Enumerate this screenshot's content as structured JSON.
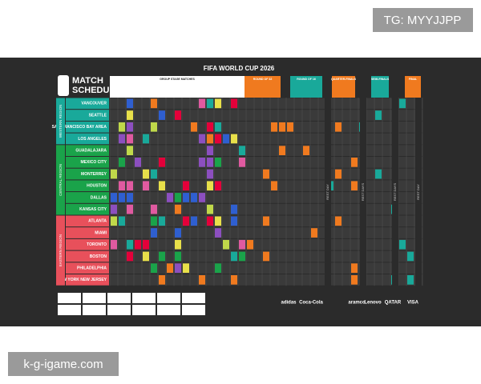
{
  "watermark_top": "TG: MYYJJPP",
  "watermark_bottom": "k-g-igame.com",
  "poster": {
    "title": "FIFA WORLD CUP 2026",
    "heading": [
      "MATCH",
      "SCHEDULE"
    ],
    "stages": [
      "GROUP STAGE MATCHES",
      "ROUND OF 32",
      "ROUND OF 16",
      "QUARTER-FINALS",
      "SEMI-FINALS",
      "FINAL"
    ],
    "regions": [
      {
        "name": "WESTERN REGION",
        "cities": [
          "VANCOUVER",
          "SEATTLE",
          "SAN FRANCISCO BAY AREA",
          "LOS ANGELES"
        ]
      },
      {
        "name": "CENTRAL REGION",
        "cities": [
          "GUADALAJARA",
          "MEXICO CITY",
          "MONTERREY",
          "HOUSTON",
          "DALLAS",
          "KANSAS CITY"
        ]
      },
      {
        "name": "EASTERN REGION",
        "cities": [
          "ATLANTA",
          "MIAMI",
          "TORONTO",
          "BOSTON",
          "PHILADELPHIA",
          "NEW YORK NEW JERSEY"
        ]
      }
    ],
    "rest_days": [
      "REST DAY",
      "REST DAYS",
      "REST DAYS",
      "REST DAY"
    ],
    "sponsors": [
      "adidas",
      "Coca-Cola",
      "aramco",
      "Lenovo",
      "QATAR",
      "VISA"
    ]
  }
}
